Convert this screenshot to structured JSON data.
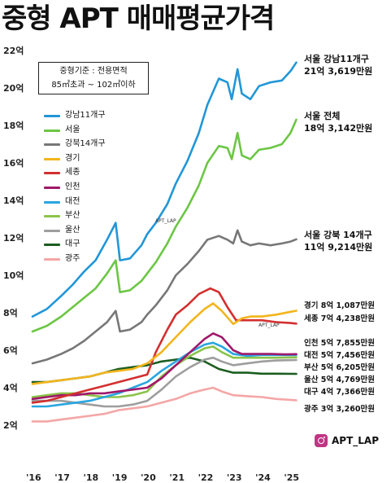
{
  "header": {
    "title": "중형 APT 매매평균가격"
  },
  "criteria_box": {
    "line1": "중형기준 : 전용면적",
    "line2": "85㎡초과 ~ 102㎡이하"
  },
  "watermark": "APT_LAP",
  "brand": {
    "handle": "APT_LAP",
    "icon": "instagram-icon"
  },
  "annotations": [
    {
      "line1": "서울 강남11개구",
      "line2": "21억 3,619만원"
    },
    {
      "line1": "서울 전체",
      "line2": "18억 3,142만원"
    },
    {
      "line1": "서울 강북 14개구",
      "line2": "11억 9,214만원"
    },
    {
      "line1": "경기 8억 1,087만원"
    },
    {
      "line1": "세종 7억 4,238만원"
    },
    {
      "line1": "인천 5억 7,855만원"
    },
    {
      "line1": "대전 5억 7,456만원"
    },
    {
      "line1": "부산 5억 6,205만원"
    },
    {
      "line1": "울산 5억 4,769만원"
    },
    {
      "line1": "대구 4억 7,366만원"
    },
    {
      "line1": "광주 3억 3,260만원"
    }
  ],
  "chart_data": {
    "type": "line",
    "title": "중형 APT 매매평균가격",
    "ylabel": "",
    "xlabel": "",
    "x_ticks": [
      "'16",
      "'17",
      "'18",
      "'19",
      "'20",
      "'21",
      "'22",
      "'23",
      "'24",
      "'25"
    ],
    "y_ticks": [
      "2억",
      "4억",
      "6억",
      "8억",
      "10억",
      "12억",
      "14억",
      "16억",
      "18억",
      "20억",
      "22억"
    ],
    "ylim": [
      2,
      22
    ],
    "xlim": [
      2016.0,
      2025.3
    ],
    "grid": false,
    "legend_position": "top-left",
    "series": [
      {
        "name": "강남11개구",
        "color": "#2196d8",
        "points": [
          [
            2016.0,
            7.8
          ],
          [
            2016.5,
            8.2
          ],
          [
            2017.0,
            8.9
          ],
          [
            2017.4,
            9.5
          ],
          [
            2017.8,
            10.2
          ],
          [
            2018.2,
            10.8
          ],
          [
            2018.6,
            11.9
          ],
          [
            2018.9,
            12.8
          ],
          [
            2019.05,
            10.8
          ],
          [
            2019.4,
            10.9
          ],
          [
            2019.8,
            11.6
          ],
          [
            2020.0,
            12.2
          ],
          [
            2020.3,
            12.8
          ],
          [
            2020.7,
            13.8
          ],
          [
            2021.0,
            14.9
          ],
          [
            2021.4,
            16.1
          ],
          [
            2021.8,
            17.6
          ],
          [
            2022.1,
            19.1
          ],
          [
            2022.5,
            20.5
          ],
          [
            2022.8,
            20.3
          ],
          [
            2022.95,
            19.4
          ],
          [
            2023.15,
            21.0
          ],
          [
            2023.3,
            19.7
          ],
          [
            2023.6,
            19.4
          ],
          [
            2023.9,
            20.1
          ],
          [
            2024.3,
            20.3
          ],
          [
            2024.7,
            20.4
          ],
          [
            2025.0,
            20.9
          ],
          [
            2025.2,
            21.36
          ]
        ]
      },
      {
        "name": "서울",
        "color": "#6cc644",
        "points": [
          [
            2016.0,
            7.0
          ],
          [
            2016.5,
            7.3
          ],
          [
            2017.0,
            7.8
          ],
          [
            2017.4,
            8.3
          ],
          [
            2017.8,
            8.8
          ],
          [
            2018.2,
            9.3
          ],
          [
            2018.6,
            10.1
          ],
          [
            2018.9,
            10.8
          ],
          [
            2019.05,
            9.1
          ],
          [
            2019.4,
            9.2
          ],
          [
            2019.8,
            9.7
          ],
          [
            2020.0,
            10.1
          ],
          [
            2020.3,
            10.7
          ],
          [
            2020.7,
            11.7
          ],
          [
            2021.0,
            12.6
          ],
          [
            2021.4,
            13.6
          ],
          [
            2021.8,
            14.8
          ],
          [
            2022.1,
            16.0
          ],
          [
            2022.5,
            16.9
          ],
          [
            2022.8,
            16.8
          ],
          [
            2022.95,
            16.2
          ],
          [
            2023.15,
            17.6
          ],
          [
            2023.3,
            16.4
          ],
          [
            2023.6,
            16.2
          ],
          [
            2023.9,
            16.7
          ],
          [
            2024.3,
            16.8
          ],
          [
            2024.7,
            17.0
          ],
          [
            2025.0,
            17.6
          ],
          [
            2025.2,
            18.31
          ]
        ]
      },
      {
        "name": "강북14개구",
        "color": "#777777",
        "points": [
          [
            2016.0,
            5.3
          ],
          [
            2016.5,
            5.5
          ],
          [
            2017.0,
            5.8
          ],
          [
            2017.4,
            6.1
          ],
          [
            2017.8,
            6.5
          ],
          [
            2018.2,
            7.0
          ],
          [
            2018.6,
            7.5
          ],
          [
            2018.9,
            8.1
          ],
          [
            2019.05,
            7.0
          ],
          [
            2019.4,
            7.1
          ],
          [
            2019.8,
            7.5
          ],
          [
            2020.0,
            7.9
          ],
          [
            2020.3,
            8.4
          ],
          [
            2020.7,
            9.2
          ],
          [
            2021.0,
            10.0
          ],
          [
            2021.4,
            10.6
          ],
          [
            2021.8,
            11.3
          ],
          [
            2022.1,
            11.9
          ],
          [
            2022.5,
            12.1
          ],
          [
            2022.8,
            11.9
          ],
          [
            2023.0,
            11.7
          ],
          [
            2023.15,
            12.4
          ],
          [
            2023.3,
            11.8
          ],
          [
            2023.6,
            11.6
          ],
          [
            2023.9,
            11.7
          ],
          [
            2024.3,
            11.6
          ],
          [
            2024.7,
            11.7
          ],
          [
            2025.0,
            11.8
          ],
          [
            2025.2,
            11.92
          ]
        ]
      },
      {
        "name": "경기",
        "color": "#f2b51c",
        "points": [
          [
            2016.0,
            4.2
          ],
          [
            2016.5,
            4.3
          ],
          [
            2017.0,
            4.4
          ],
          [
            2017.5,
            4.5
          ],
          [
            2018.0,
            4.6
          ],
          [
            2018.5,
            4.8
          ],
          [
            2019.0,
            4.9
          ],
          [
            2019.5,
            5.0
          ],
          [
            2020.0,
            5.3
          ],
          [
            2020.5,
            5.9
          ],
          [
            2021.0,
            6.7
          ],
          [
            2021.5,
            7.5
          ],
          [
            2022.0,
            8.2
          ],
          [
            2022.3,
            8.5
          ],
          [
            2022.6,
            8.1
          ],
          [
            2023.0,
            7.4
          ],
          [
            2023.3,
            7.7
          ],
          [
            2023.6,
            7.8
          ],
          [
            2024.0,
            7.8
          ],
          [
            2024.5,
            7.9
          ],
          [
            2025.0,
            8.05
          ],
          [
            2025.2,
            8.11
          ]
        ]
      },
      {
        "name": "세종",
        "color": "#d32f2f",
        "points": [
          [
            2016.0,
            3.2
          ],
          [
            2016.5,
            3.3
          ],
          [
            2017.0,
            3.5
          ],
          [
            2017.5,
            3.7
          ],
          [
            2018.0,
            3.9
          ],
          [
            2018.5,
            4.1
          ],
          [
            2019.0,
            4.3
          ],
          [
            2019.5,
            4.5
          ],
          [
            2020.0,
            4.7
          ],
          [
            2020.3,
            5.9
          ],
          [
            2020.7,
            7.1
          ],
          [
            2021.0,
            7.9
          ],
          [
            2021.4,
            8.4
          ],
          [
            2021.8,
            9.0
          ],
          [
            2022.2,
            9.3
          ],
          [
            2022.5,
            9.1
          ],
          [
            2022.8,
            8.3
          ],
          [
            2023.1,
            7.6
          ],
          [
            2023.5,
            7.6
          ],
          [
            2024.0,
            7.6
          ],
          [
            2024.5,
            7.5
          ],
          [
            2025.0,
            7.45
          ],
          [
            2025.2,
            7.42
          ]
        ]
      },
      {
        "name": "인천",
        "color": "#a0186a",
        "points": [
          [
            2016.0,
            3.4
          ],
          [
            2016.5,
            3.5
          ],
          [
            2017.0,
            3.6
          ],
          [
            2017.5,
            3.6
          ],
          [
            2018.0,
            3.7
          ],
          [
            2018.5,
            3.7
          ],
          [
            2019.0,
            3.8
          ],
          [
            2019.5,
            3.9
          ],
          [
            2020.0,
            4.0
          ],
          [
            2020.5,
            4.5
          ],
          [
            2021.0,
            5.2
          ],
          [
            2021.5,
            5.9
          ],
          [
            2022.0,
            6.6
          ],
          [
            2022.3,
            6.9
          ],
          [
            2022.6,
            6.7
          ],
          [
            2023.0,
            6.0
          ],
          [
            2023.3,
            5.8
          ],
          [
            2023.8,
            5.8
          ],
          [
            2024.3,
            5.8
          ],
          [
            2024.8,
            5.78
          ],
          [
            2025.2,
            5.79
          ]
        ]
      },
      {
        "name": "대전",
        "color": "#29a6e0",
        "points": [
          [
            2016.0,
            3.0
          ],
          [
            2016.5,
            3.0
          ],
          [
            2017.0,
            3.1
          ],
          [
            2017.5,
            3.2
          ],
          [
            2018.0,
            3.3
          ],
          [
            2018.5,
            3.5
          ],
          [
            2019.0,
            3.7
          ],
          [
            2019.5,
            4.0
          ],
          [
            2020.0,
            4.3
          ],
          [
            2020.5,
            4.9
          ],
          [
            2021.0,
            5.4
          ],
          [
            2021.5,
            5.9
          ],
          [
            2022.0,
            6.3
          ],
          [
            2022.3,
            6.4
          ],
          [
            2022.6,
            6.2
          ],
          [
            2023.0,
            5.8
          ],
          [
            2023.5,
            5.7
          ],
          [
            2024.0,
            5.75
          ],
          [
            2024.5,
            5.75
          ],
          [
            2025.2,
            5.75
          ]
        ]
      },
      {
        "name": "부산",
        "color": "#8bc34a",
        "points": [
          [
            2016.0,
            3.5
          ],
          [
            2016.5,
            3.6
          ],
          [
            2017.0,
            3.7
          ],
          [
            2017.5,
            3.7
          ],
          [
            2018.0,
            3.6
          ],
          [
            2018.5,
            3.5
          ],
          [
            2019.0,
            3.5
          ],
          [
            2019.5,
            3.6
          ],
          [
            2020.0,
            3.8
          ],
          [
            2020.5,
            4.6
          ],
          [
            2021.0,
            5.2
          ],
          [
            2021.5,
            5.7
          ],
          [
            2022.0,
            6.1
          ],
          [
            2022.3,
            6.2
          ],
          [
            2022.6,
            5.9
          ],
          [
            2023.0,
            5.6
          ],
          [
            2023.5,
            5.6
          ],
          [
            2024.0,
            5.6
          ],
          [
            2024.5,
            5.6
          ],
          [
            2025.2,
            5.62
          ]
        ]
      },
      {
        "name": "울산",
        "color": "#9e9e9e",
        "points": [
          [
            2016.0,
            3.3
          ],
          [
            2016.5,
            3.3
          ],
          [
            2017.0,
            3.3
          ],
          [
            2017.5,
            3.2
          ],
          [
            2018.0,
            3.1
          ],
          [
            2018.5,
            3.0
          ],
          [
            2019.0,
            3.0
          ],
          [
            2019.5,
            3.1
          ],
          [
            2020.0,
            3.3
          ],
          [
            2020.5,
            3.9
          ],
          [
            2021.0,
            4.6
          ],
          [
            2021.5,
            5.1
          ],
          [
            2022.0,
            5.5
          ],
          [
            2022.3,
            5.6
          ],
          [
            2022.6,
            5.4
          ],
          [
            2023.0,
            5.2
          ],
          [
            2023.5,
            5.3
          ],
          [
            2024.0,
            5.4
          ],
          [
            2024.5,
            5.45
          ],
          [
            2025.2,
            5.48
          ]
        ]
      },
      {
        "name": "대구",
        "color": "#1b5e20",
        "points": [
          [
            2016.0,
            4.3
          ],
          [
            2016.5,
            4.3
          ],
          [
            2017.0,
            4.4
          ],
          [
            2017.5,
            4.5
          ],
          [
            2018.0,
            4.6
          ],
          [
            2018.5,
            4.8
          ],
          [
            2019.0,
            5.0
          ],
          [
            2019.5,
            5.1
          ],
          [
            2020.0,
            5.2
          ],
          [
            2020.5,
            5.4
          ],
          [
            2021.0,
            5.5
          ],
          [
            2021.5,
            5.6
          ],
          [
            2022.0,
            5.4
          ],
          [
            2022.5,
            5.0
          ],
          [
            2023.0,
            4.8
          ],
          [
            2023.5,
            4.8
          ],
          [
            2024.0,
            4.75
          ],
          [
            2024.5,
            4.75
          ],
          [
            2025.2,
            4.74
          ]
        ]
      },
      {
        "name": "광주",
        "color": "#f4a6a6",
        "points": [
          [
            2016.0,
            2.2
          ],
          [
            2016.5,
            2.2
          ],
          [
            2017.0,
            2.3
          ],
          [
            2017.5,
            2.4
          ],
          [
            2018.0,
            2.5
          ],
          [
            2018.5,
            2.6
          ],
          [
            2019.0,
            2.8
          ],
          [
            2019.5,
            2.9
          ],
          [
            2020.0,
            3.0
          ],
          [
            2020.5,
            3.2
          ],
          [
            2021.0,
            3.4
          ],
          [
            2021.5,
            3.7
          ],
          [
            2022.0,
            3.9
          ],
          [
            2022.3,
            4.0
          ],
          [
            2022.6,
            3.8
          ],
          [
            2023.0,
            3.6
          ],
          [
            2023.5,
            3.55
          ],
          [
            2024.0,
            3.5
          ],
          [
            2024.5,
            3.4
          ],
          [
            2025.2,
            3.33
          ]
        ]
      }
    ]
  }
}
